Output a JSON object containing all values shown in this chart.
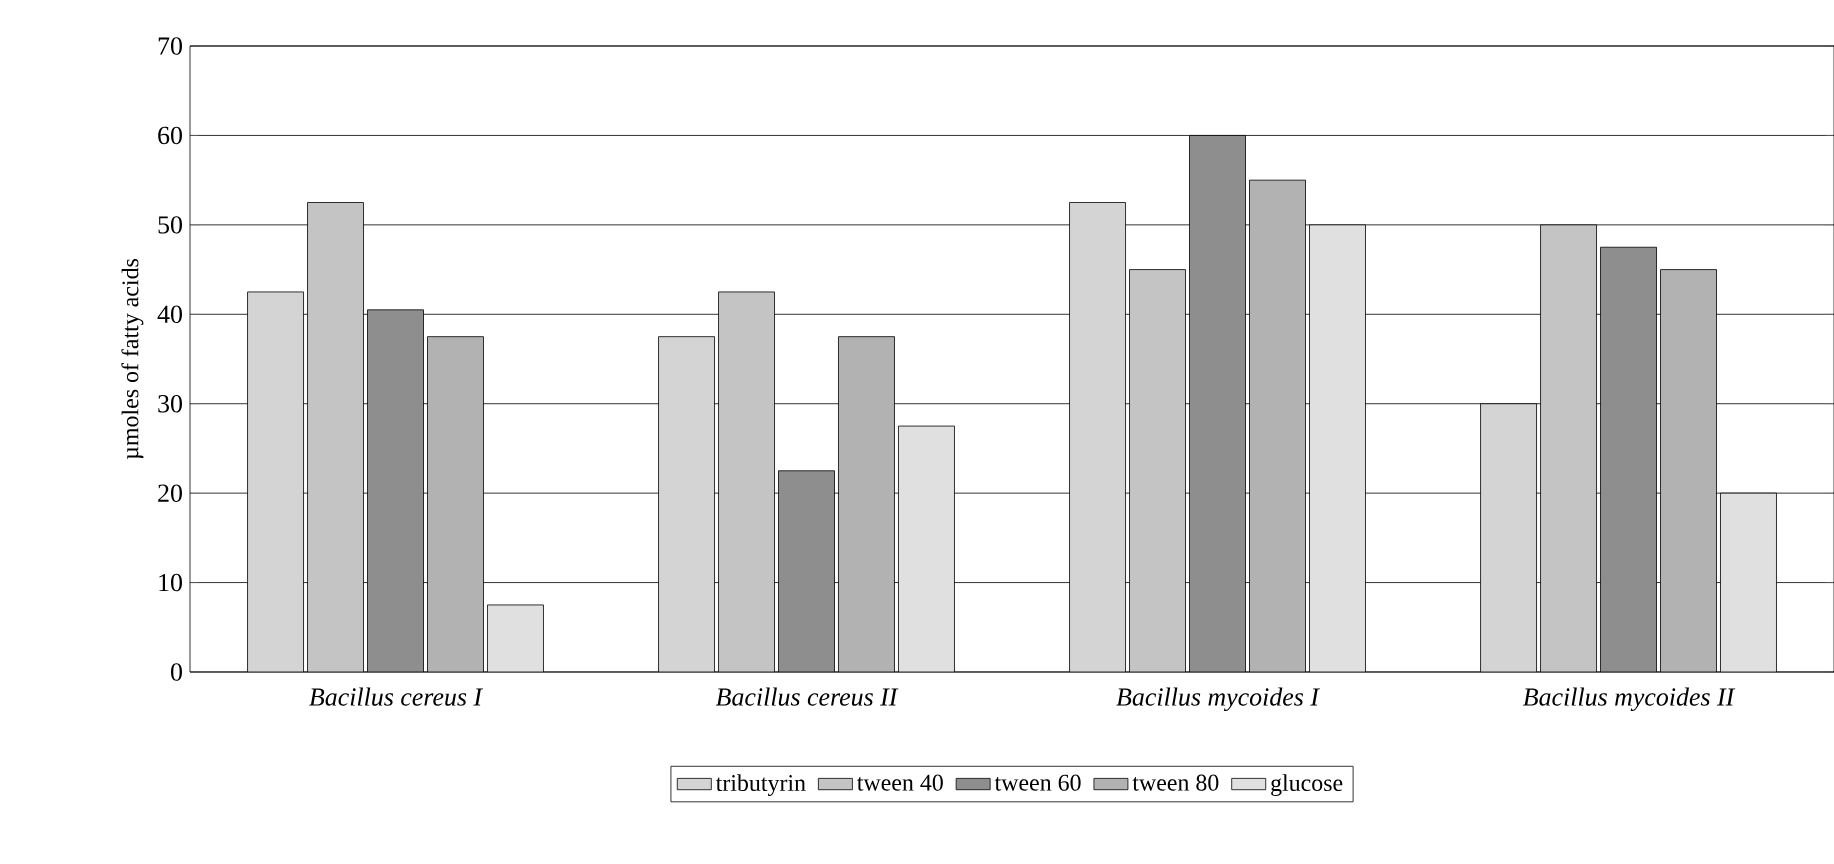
{
  "chart_data": {
    "type": "bar",
    "ylabel": "µmoles of fatty acids",
    "categories": [
      "Bacillus cereus I",
      "Bacillus cereus II",
      "Bacillus mycoides I",
      "Bacillus mycoides II"
    ],
    "series": [
      {
        "name": "tributyrin",
        "color": "#d4d4d4",
        "values": [
          42.5,
          37.5,
          52.5,
          30
        ]
      },
      {
        "name": "tween 40",
        "color": "#c4c4c4",
        "values": [
          52.5,
          42.5,
          45,
          50
        ]
      },
      {
        "name": "tween 60",
        "color": "#8e8e8e",
        "values": [
          40.5,
          22.5,
          60,
          47.5
        ]
      },
      {
        "name": "tween 80",
        "color": "#b2b2b2",
        "values": [
          37.5,
          37.5,
          55,
          45
        ]
      },
      {
        "name": "glucose",
        "color": "#e0e0e0",
        "values": [
          7.5,
          27.5,
          50,
          20
        ]
      }
    ],
    "ylim": [
      0,
      70
    ],
    "yticks": [
      0,
      10,
      20,
      30,
      40,
      50,
      60,
      70
    ],
    "grid": "y",
    "legend": "bottom"
  }
}
